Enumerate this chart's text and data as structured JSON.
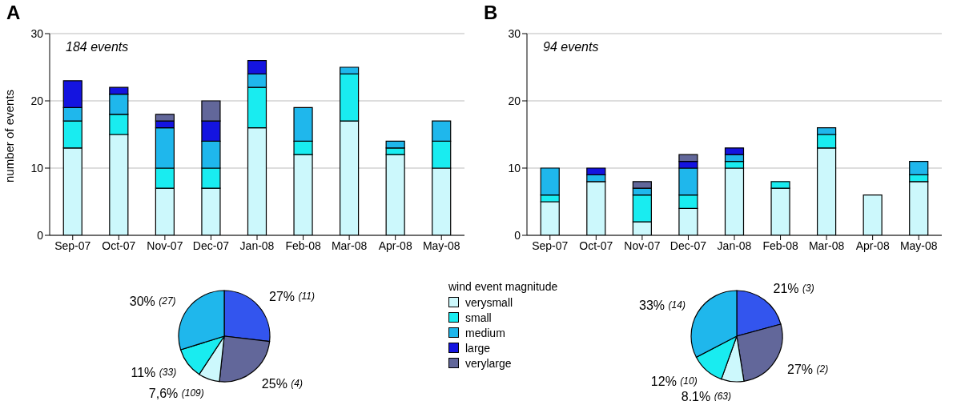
{
  "chart_data": [
    {
      "type": "bar",
      "title": "A",
      "stacked": true,
      "ylabel": "number of events",
      "legend": "bottom",
      "legend_title": "wind event magnitude",
      "categories": [
        "Sep-07",
        "Oct-07",
        "Nov-07",
        "Dec-07",
        "Jan-08",
        "Feb-08",
        "Mar-08",
        "Apr-08",
        "May-08"
      ],
      "ylim": [
        0,
        30
      ],
      "yticks": [
        0,
        10,
        20,
        30
      ],
      "grid": "y",
      "annotations": [
        "184 events"
      ],
      "series": [
        {
          "name": "verysmall",
          "color": "#ccf8fc",
          "values": [
            13,
            15,
            7,
            7,
            16,
            12,
            17,
            12,
            10
          ]
        },
        {
          "name": "small",
          "color": "#19ecf0",
          "values": [
            4,
            3,
            3,
            3,
            6,
            2,
            7,
            1,
            4
          ]
        },
        {
          "name": "medium",
          "color": "#1fb7ec",
          "values": [
            2,
            3,
            6,
            4,
            2,
            5,
            1,
            1,
            3
          ]
        },
        {
          "name": "large",
          "color": "#1414e0",
          "values": [
            4,
            1,
            1,
            3,
            2,
            0,
            0,
            0,
            0
          ]
        },
        {
          "name": "verylarge",
          "color": "#62679a",
          "values": [
            0,
            0,
            1,
            3,
            0,
            0,
            0,
            0,
            0
          ]
        }
      ]
    },
    {
      "type": "bar",
      "title": "B",
      "stacked": true,
      "categories": [
        "Sep-07",
        "Oct-07",
        "Nov-07",
        "Dec-07",
        "Jan-08",
        "Feb-08",
        "Mar-08",
        "Apr-08",
        "May-08"
      ],
      "ylim": [
        0,
        30
      ],
      "yticks": [
        0,
        10,
        20,
        30
      ],
      "grid": "y",
      "annotations": [
        "94 events"
      ],
      "series": [
        {
          "color": "#ccf8fc",
          "values": [
            5,
            8,
            2,
            4,
            10,
            7,
            13,
            6,
            8
          ]
        },
        {
          "color": "#19ecf0",
          "values": [
            1,
            0,
            4,
            2,
            1,
            1,
            2,
            0,
            1
          ]
        },
        {
          "color": "#1fb7ec",
          "values": [
            4,
            1,
            1,
            4,
            1,
            0,
            1,
            0,
            2
          ]
        },
        {
          "color": "#1414e0",
          "values": [
            0,
            1,
            0,
            1,
            1,
            0,
            0,
            0,
            0
          ]
        },
        {
          "color": "#62679a",
          "values": [
            0,
            0,
            1,
            1,
            0,
            0,
            0,
            0,
            0
          ]
        }
      ]
    },
    {
      "type": "pie",
      "categories": [
        null,
        null,
        null,
        null,
        null
      ],
      "values": [
        27,
        25,
        7.6,
        11,
        30
      ],
      "value_labels": [
        "27% (11)",
        "25% (4)",
        "7,6% (109)",
        "11% (33)",
        "30% (27)"
      ],
      "colors": [
        "#3355ee",
        "#62679a",
        "#ccf8fc",
        "#19ecf0",
        "#1fb7ec"
      ]
    },
    {
      "type": "pie",
      "categories": [
        null,
        null,
        null,
        null,
        null
      ],
      "values": [
        21,
        27,
        8.1,
        12,
        33
      ],
      "value_labels": [
        "21% (3)",
        "27% (2)",
        "8,1% (63)",
        "12% (10)",
        "33% (14)"
      ],
      "colors": [
        "#3355ee",
        "#62679a",
        "#ccf8fc",
        "#19ecf0",
        "#1fb7ec"
      ]
    }
  ]
}
